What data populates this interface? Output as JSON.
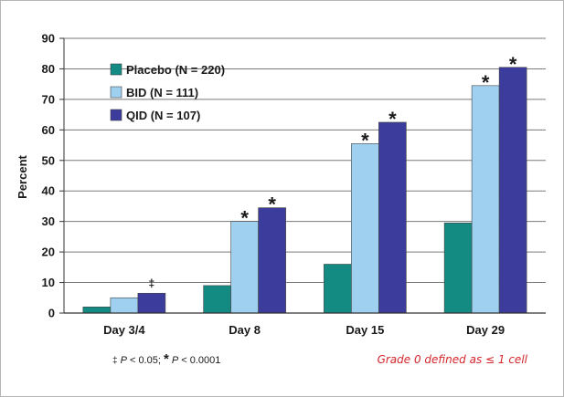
{
  "chart_data": {
    "type": "bar",
    "ylabel": "Percent",
    "ylim": [
      0,
      90
    ],
    "yticks": [
      0,
      10,
      20,
      30,
      40,
      50,
      60,
      70,
      80,
      90
    ],
    "grid": true,
    "legend_position": "top-left",
    "categories": [
      "Day 3/4",
      "Day 8",
      "Day 15",
      "Day 29"
    ],
    "series": [
      {
        "name": "Placebo (N = 220)",
        "color": "#138a82",
        "values": [
          2,
          9,
          16,
          29.5
        ]
      },
      {
        "name": "BID (N = 111)",
        "color": "#9fd0f0",
        "values": [
          5,
          30,
          55.5,
          74.5
        ]
      },
      {
        "name": "QID (N = 107)",
        "color": "#3c3c9c",
        "values": [
          6.5,
          34.5,
          62.5,
          80.5
        ]
      }
    ],
    "annotations": [
      {
        "category": "Day 3/4",
        "series": "QID (N = 107)",
        "text": "‡"
      },
      {
        "category": "Day 8",
        "series": "BID (N = 111)",
        "text": "*"
      },
      {
        "category": "Day 8",
        "series": "QID (N = 107)",
        "text": "*"
      },
      {
        "category": "Day 15",
        "series": "BID (N = 111)",
        "text": "*"
      },
      {
        "category": "Day 15",
        "series": "QID (N = 107)",
        "text": "*"
      },
      {
        "category": "Day 29",
        "series": "BID (N = 111)",
        "text": "*"
      },
      {
        "category": "Day 29",
        "series": "QID (N = 107)",
        "text": "*"
      }
    ]
  },
  "footnote": {
    "dagger": "‡",
    "p_label_1": "P",
    "p_value_1": " < 0.05; ",
    "star": "*",
    "p_label_2": "P",
    "p_value_2": " < 0.0001"
  },
  "grade_note": "Grade 0 defined as ≤ 1 cell"
}
